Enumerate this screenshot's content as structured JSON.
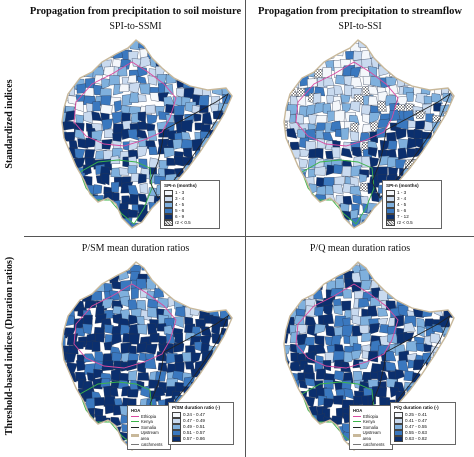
{
  "titles": {
    "left_col": "Propagation from precipitation to soil moisture",
    "right_col": "Propagation from precipitation to streamflow",
    "panel_a": "SPI-to-SSMI",
    "panel_b": "SPI-to-SSI",
    "panel_c": "P/SM mean duration ratios",
    "panel_d": "P/Q mean duration ratios"
  },
  "row_labels": {
    "top": "Standardized indices",
    "bottom": "Threshold-based indices (Duration ratios)"
  },
  "legend_a": {
    "title": "SPI-n (months)",
    "items": [
      "1 - 3",
      "3 - 4",
      "4 - 5",
      "5 - 6",
      "6 - 9",
      "r2 < 0.5"
    ]
  },
  "legend_b": {
    "title": "SPI-n (months)",
    "items": [
      "1 - 3",
      "3 - 4",
      "4 - 5",
      "5 - 6",
      "7 - 12",
      "r2 < 0.5"
    ]
  },
  "legend_c": {
    "title": "P/SM duration ratio (-)",
    "items": [
      "0.24 - 0.47",
      "0.47 - 0.49",
      "0.49 - 0.51",
      "0.51 - 0.57",
      "0.57 - 0.86"
    ]
  },
  "legend_d": {
    "title": "P/Q duration ratio (-)",
    "items": [
      "0.25 - 0.41",
      "0.41 - 0.47",
      "0.47 - 0.55",
      "0.55 - 0.63",
      "0.63 - 0.82"
    ]
  },
  "hoa_legend": {
    "title": "HOA",
    "items": [
      "Ethiopia",
      "Kenya",
      "Somalia",
      "Upstream area",
      "catchments"
    ]
  },
  "colors": {
    "c1": "#f4f7fb",
    "c2": "#c9daef",
    "c3": "#7fb0dd",
    "c4": "#3a78bf",
    "c5": "#0b2f6e",
    "ethiopia": "#d94aa0",
    "kenya": "#3bb44a",
    "somalia": "#222222",
    "upstream": "#c8b89a"
  }
}
